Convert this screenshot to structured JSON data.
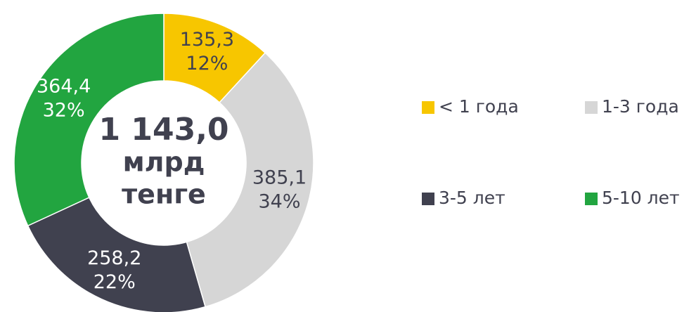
{
  "chart_data": {
    "type": "donut",
    "categories": [
      "< 1 года",
      "1-3 года",
      "3-5 лет",
      "5-10 лет"
    ],
    "values": [
      135.3,
      385.1,
      258.2,
      364.4
    ],
    "value_labels": [
      "135,3",
      "385,1",
      "258,2",
      "364,4"
    ],
    "percentages": [
      12,
      34,
      22,
      32
    ],
    "percentage_labels": [
      "12%",
      "34%",
      "22%",
      "32%"
    ],
    "colors": [
      "#f7c600",
      "#d6d6d6",
      "#40414f",
      "#22a540"
    ],
    "label_colors": [
      "#40414f",
      "#40414f",
      "#ffffff",
      "#ffffff"
    ],
    "center_label": [
      "1 143,0",
      "млрд",
      "тенге"
    ],
    "legend": "right"
  }
}
